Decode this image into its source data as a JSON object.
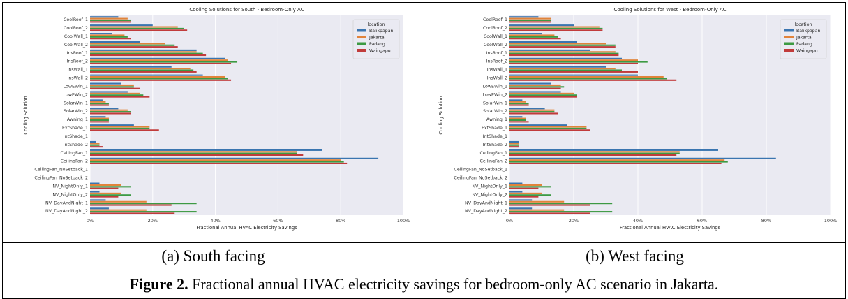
{
  "colors": {
    "Balikpapan": "#3a75b0",
    "Jakarta": "#e1833a",
    "Padang": "#3d9a43",
    "Waingapu": "#c13b3b",
    "plot_bg": "#eaeaf2",
    "grid": "#ffffff"
  },
  "caption": {
    "label": "Figure 2.",
    "text": " Fractional annual HVAC electricity savings for bedroom-only AC scenario in Jakarta."
  },
  "subcaptions": [
    "(a) South facing",
    "(b) West facing"
  ],
  "chart_data": [
    {
      "type": "bar",
      "orientation": "horizontal",
      "title": "Cooling Solutions for South - Bedroom-Only AC",
      "xlabel": "Fractional Annual HVAC Electricity Savings",
      "ylabel": "Cooling Solution",
      "xlim": [
        0,
        1.0
      ],
      "xticks": [
        "0%",
        "20%",
        "40%",
        "60%",
        "80%",
        "100%"
      ],
      "grid": true,
      "legend": {
        "title": "location",
        "placement": "top-right"
      },
      "categories": [
        "CoolRoof_1",
        "CoolRoof_2",
        "CoolWall_1",
        "CoolWall_2",
        "InsRoof_1",
        "InsRoof_2",
        "InsWall_1",
        "InsWall_2",
        "LowEWin_1",
        "LowEWin_2",
        "SolarWin_1",
        "SolarWin_2",
        "Awning_1",
        "ExtShade_1",
        "IntShade_1",
        "IntShade_2",
        "CeilingFan_1",
        "CeilingFan_2",
        "CeilingFan_NoSetback_1",
        "CeilingFan_NoSetback_2",
        "NV_NightOnly_1",
        "NV_NightOnly_2",
        "NV_DayAndNight_1",
        "NV_DayAndNight_2"
      ],
      "series": [
        {
          "name": "Balikpapan",
          "values": [
            0.09,
            0.2,
            0.07,
            0.16,
            0.34,
            0.43,
            0.26,
            0.36,
            0.1,
            0.12,
            0.04,
            0.09,
            0.05,
            0.14,
            0,
            0.02,
            0.74,
            0.92,
            0,
            0,
            0.03,
            0.03,
            0.05,
            0.06
          ]
        },
        {
          "name": "Jakarta",
          "values": [
            0.12,
            0.28,
            0.11,
            0.24,
            0.34,
            0.44,
            0.32,
            0.43,
            0.14,
            0.16,
            0.05,
            0.12,
            0.06,
            0.19,
            0,
            0.03,
            0.66,
            0.8,
            0,
            0,
            0.1,
            0.1,
            0.18,
            0.18
          ]
        },
        {
          "name": "Padang",
          "values": [
            0.13,
            0.3,
            0.12,
            0.27,
            0.36,
            0.47,
            0.33,
            0.44,
            0.14,
            0.17,
            0.06,
            0.13,
            0.06,
            0.19,
            0,
            0.03,
            0.66,
            0.81,
            0,
            0,
            0.13,
            0.13,
            0.34,
            0.34
          ]
        },
        {
          "name": "Waingapu",
          "values": [
            0.13,
            0.31,
            0.13,
            0.28,
            0.37,
            0.45,
            0.34,
            0.45,
            0.16,
            0.19,
            0.06,
            0.13,
            0.06,
            0.22,
            0,
            0.04,
            0.68,
            0.82,
            0,
            0,
            0.09,
            0.09,
            0.26,
            0.27
          ]
        }
      ]
    },
    {
      "type": "bar",
      "orientation": "horizontal",
      "title": "Cooling Solutions for West - Bedroom-Only AC",
      "xlabel": "Fractional Annual HVAC Electricity Savings",
      "ylabel": "Cooling Solution",
      "xlim": [
        0,
        1.0
      ],
      "xticks": [
        "0%",
        "20%",
        "40%",
        "60%",
        "80%",
        "100%"
      ],
      "grid": true,
      "legend": {
        "title": "location",
        "placement": "top-right"
      },
      "categories": [
        "CoolRoof_1",
        "CoolRoof_2",
        "CoolWall_1",
        "CoolWall_2",
        "InsRoof_1",
        "InsRoof_2",
        "InsWall_1",
        "InsWall_2",
        "LowEWin_1",
        "LowEWin_2",
        "SolarWin_1",
        "SolarWin_2",
        "Awning_1",
        "ExtShade_1",
        "IntShade_1",
        "IntShade_2",
        "CeilingFan_1",
        "CeilingFan_2",
        "CeilingFan_NoSetback_1",
        "CeilingFan_NoSetback_2",
        "NV_NightOnly_1",
        "NV_NightOnly_2",
        "NV_DayAndNight_1",
        "NV_DayAndNight_2"
      ],
      "series": [
        {
          "name": "Balikpapan",
          "values": [
            0.09,
            0.2,
            0.1,
            0.21,
            0.25,
            0.35,
            0.3,
            0.4,
            0.13,
            0.16,
            0.04,
            0.11,
            0.04,
            0.18,
            0,
            0.03,
            0.65,
            0.83,
            0,
            0,
            0.04,
            0.04,
            0.07,
            0.07
          ]
        },
        {
          "name": "Jakarta",
          "values": [
            0.13,
            0.28,
            0.14,
            0.3,
            0.33,
            0.4,
            0.33,
            0.48,
            0.16,
            0.2,
            0.05,
            0.14,
            0.05,
            0.24,
            0,
            0.03,
            0.53,
            0.67,
            0,
            0,
            0.1,
            0.1,
            0.17,
            0.17
          ]
        },
        {
          "name": "Padang",
          "values": [
            0.13,
            0.29,
            0.15,
            0.33,
            0.34,
            0.43,
            0.35,
            0.49,
            0.17,
            0.21,
            0.06,
            0.14,
            0.05,
            0.24,
            0,
            0.03,
            0.53,
            0.68,
            0,
            0,
            0.13,
            0.13,
            0.32,
            0.32
          ]
        },
        {
          "name": "Waingapu",
          "values": [
            0.13,
            0.29,
            0.16,
            0.33,
            0.34,
            0.4,
            0.4,
            0.52,
            0.16,
            0.21,
            0.06,
            0.15,
            0.06,
            0.25,
            0,
            0.03,
            0.52,
            0.66,
            0,
            0,
            0.09,
            0.09,
            0.25,
            0.25
          ]
        }
      ]
    }
  ]
}
